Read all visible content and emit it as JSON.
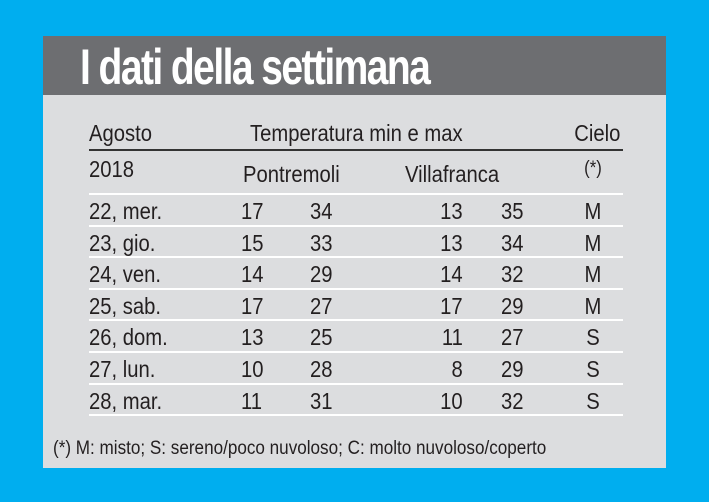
{
  "title": "I dati della settimana",
  "header": {
    "month": "Agosto",
    "year": "2018",
    "temperature": "Temperatura min e max",
    "station1": "Pontremoli",
    "station2": "Villafranca",
    "sky": "Cielo",
    "sky_note": "(*)"
  },
  "rows": [
    {
      "date": "22, mer.",
      "p_min": "17",
      "p_max": "34",
      "v_min": "13",
      "v_max": "35",
      "sky": "M"
    },
    {
      "date": "23, gio.",
      "p_min": "15",
      "p_max": "33",
      "v_min": "13",
      "v_max": "34",
      "sky": "M"
    },
    {
      "date": "24, ven.",
      "p_min": "14",
      "p_max": "29",
      "v_min": "14",
      "v_max": "32",
      "sky": "M"
    },
    {
      "date": "25, sab.",
      "p_min": "17",
      "p_max": "27",
      "v_min": "17",
      "v_max": "29",
      "sky": "M"
    },
    {
      "date": "26, dom.",
      "p_min": "13",
      "p_max": "25",
      "v_min": "11",
      "v_max": "27",
      "sky": "S"
    },
    {
      "date": "27, lun.",
      "p_min": "10",
      "p_max": "28",
      "v_min": "8",
      "v_max": "29",
      "sky": "S"
    },
    {
      "date": "28, mar.",
      "p_min": "11",
      "p_max": "31",
      "v_min": "10",
      "v_max": "32",
      "sky": "S"
    }
  ],
  "footnote": "(*) M: misto; S: sereno/poco nuvoloso; C: molto nuvoloso/coperto",
  "colors": {
    "background": "#00aeef",
    "band": "#6d6e71",
    "panel": "#dcdddf"
  }
}
